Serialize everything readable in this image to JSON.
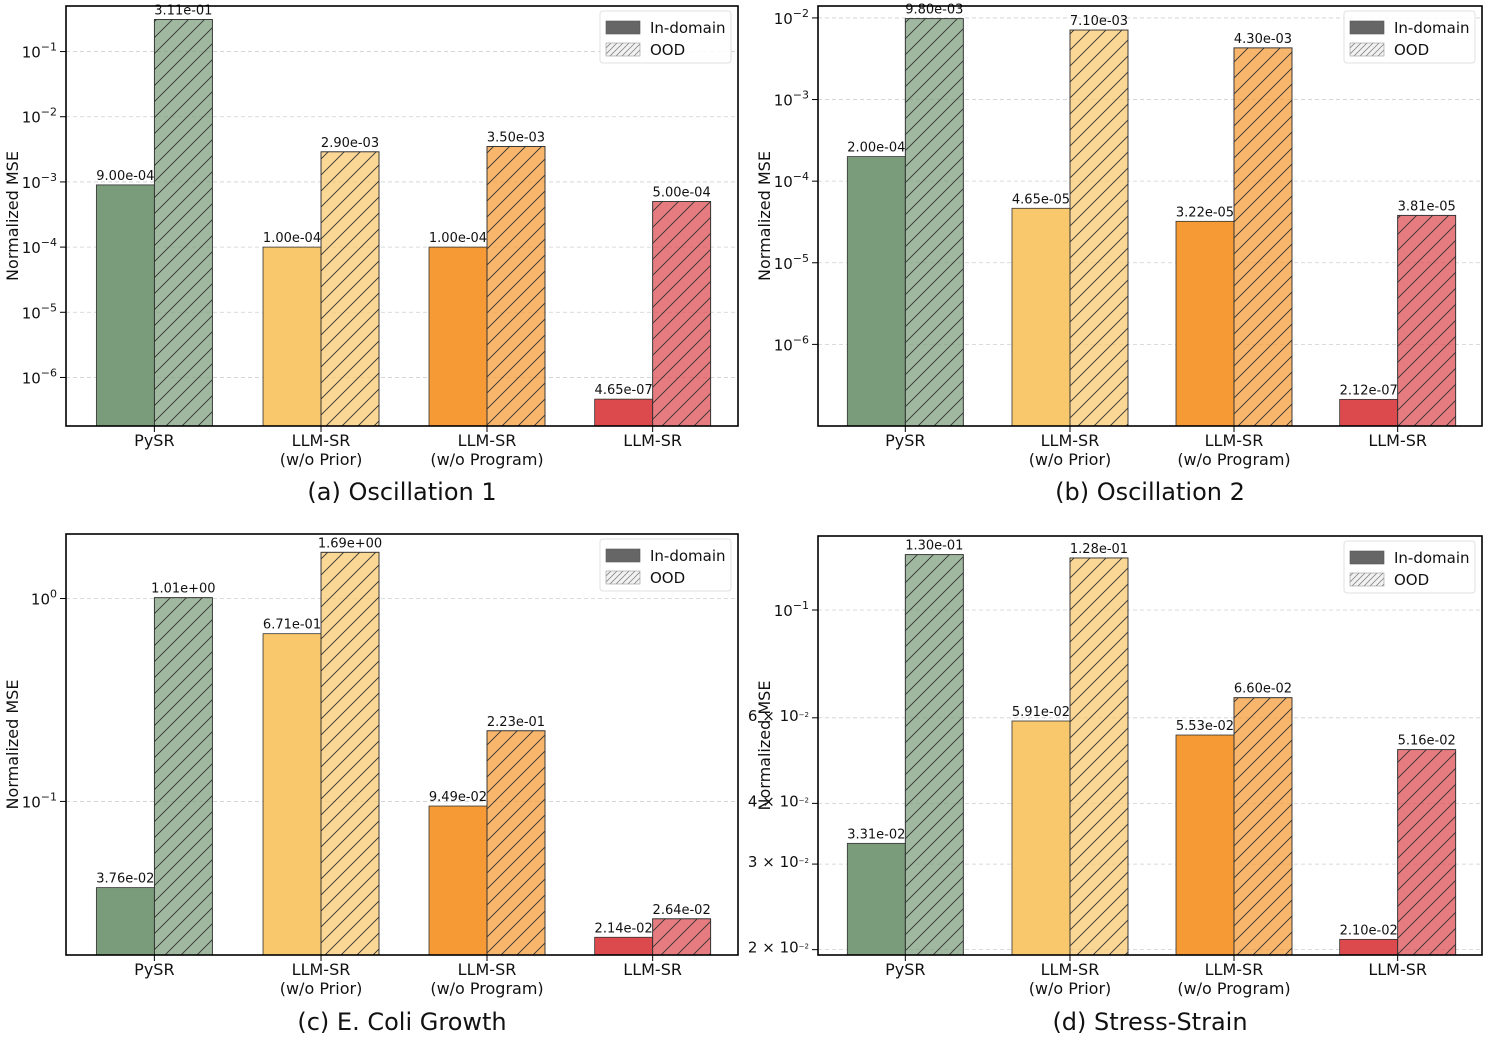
{
  "colors": {
    "pysr": "#7a9c7a",
    "llmsr_wo_prior": "#f9c86c",
    "llmsr_wo_program": "#f59a35",
    "llmsr": "#dc4a4d"
  },
  "legend": {
    "in_domain": "In-domain",
    "ood": "OOD"
  },
  "chart_data": [
    {
      "type": "bar",
      "scale": "log",
      "title": "(a) Oscillation 1",
      "ylabel": "Normalized MSE",
      "categories": [
        [
          "PySR"
        ],
        [
          "LLM-SR",
          "(w/o Prior)"
        ],
        [
          "LLM-SR",
          "(w/o Program)"
        ],
        [
          "LLM-SR"
        ]
      ],
      "series": [
        {
          "name": "In-domain",
          "values": [
            0.0009,
            0.0001,
            0.0001,
            4.65e-07
          ],
          "labels": [
            "9.00e-04",
            "1.00e-04",
            "1.00e-04",
            "4.65e-07"
          ]
        },
        {
          "name": "OOD",
          "values": [
            0.311,
            0.0029,
            0.0035,
            0.0005
          ],
          "labels": [
            "3.11e-01",
            "2.90e-03",
            "3.50e-03",
            "5.00e-04"
          ]
        }
      ],
      "ylim": [
        1.8e-07,
        0.5
      ],
      "yticks": [
        {
          "value": 1e-06,
          "base": "10",
          "exp": "−6"
        },
        {
          "value": 1e-05,
          "base": "10",
          "exp": "−5"
        },
        {
          "value": 0.0001,
          "base": "10",
          "exp": "−4"
        },
        {
          "value": 0.001,
          "base": "10",
          "exp": "−3"
        },
        {
          "value": 0.01,
          "base": "10",
          "exp": "−2"
        },
        {
          "value": 0.1,
          "base": "10",
          "exp": "−1"
        }
      ],
      "legend_position": "top-right",
      "grid": true
    },
    {
      "type": "bar",
      "scale": "log",
      "title": "(b) Oscillation 2",
      "ylabel": "Normalized MSE",
      "categories": [
        [
          "PySR"
        ],
        [
          "LLM-SR",
          "(w/o Prior)"
        ],
        [
          "LLM-SR",
          "(w/o Program)"
        ],
        [
          "LLM-SR"
        ]
      ],
      "series": [
        {
          "name": "In-domain",
          "values": [
            0.0002,
            4.65e-05,
            3.22e-05,
            2.12e-07
          ],
          "labels": [
            "2.00e-04",
            "4.65e-05",
            "3.22e-05",
            "2.12e-07"
          ]
        },
        {
          "name": "OOD",
          "values": [
            0.0098,
            0.0071,
            0.0043,
            3.81e-05
          ],
          "labels": [
            "9.80e-03",
            "7.10e-03",
            "4.30e-03",
            "3.81e-05"
          ]
        }
      ],
      "ylim": [
        1e-07,
        0.014
      ],
      "yticks": [
        {
          "value": 1e-06,
          "base": "10",
          "exp": "−6"
        },
        {
          "value": 1e-05,
          "base": "10",
          "exp": "−5"
        },
        {
          "value": 0.0001,
          "base": "10",
          "exp": "−4"
        },
        {
          "value": 0.001,
          "base": "10",
          "exp": "−3"
        },
        {
          "value": 0.01,
          "base": "10",
          "exp": "−2"
        }
      ],
      "legend_position": "top-right",
      "grid": true
    },
    {
      "type": "bar",
      "scale": "log",
      "title": "(c) E. Coli Growth",
      "ylabel": "Normalized MSE",
      "categories": [
        [
          "PySR"
        ],
        [
          "LLM-SR",
          "(w/o Prior)"
        ],
        [
          "LLM-SR",
          "(w/o Program)"
        ],
        [
          "LLM-SR"
        ]
      ],
      "series": [
        {
          "name": "In-domain",
          "values": [
            0.0376,
            0.671,
            0.0949,
            0.0214
          ],
          "labels": [
            "3.76e-02",
            "6.71e-01",
            "9.49e-02",
            "2.14e-02"
          ]
        },
        {
          "name": "OOD",
          "values": [
            1.01,
            1.69,
            0.223,
            0.0264
          ],
          "labels": [
            "1.01e+00",
            "1.69e+00",
            "2.23e-01",
            "2.64e-02"
          ]
        }
      ],
      "ylim": [
        0.0175,
        2.08
      ],
      "yticks": [
        {
          "value": 0.1,
          "base": "10",
          "exp": "−1"
        },
        {
          "value": 1,
          "base": "10",
          "exp": "0"
        }
      ],
      "legend_position": "top-right",
      "grid": true
    },
    {
      "type": "bar",
      "scale": "log",
      "title": "(d) Stress-Strain",
      "ylabel": "Normalized MSE",
      "categories": [
        [
          "PySR"
        ],
        [
          "LLM-SR",
          "(w/o Prior)"
        ],
        [
          "LLM-SR",
          "(w/o Program)"
        ],
        [
          "LLM-SR"
        ]
      ],
      "series": [
        {
          "name": "In-domain",
          "values": [
            0.0331,
            0.0591,
            0.0553,
            0.021
          ],
          "labels": [
            "3.31e-02",
            "5.91e-02",
            "5.53e-02",
            "2.10e-02"
          ]
        },
        {
          "name": "OOD",
          "values": [
            0.13,
            0.128,
            0.066,
            0.0516
          ],
          "labels": [
            "1.30e-01",
            "1.28e-01",
            "6.60e-02",
            "5.16e-02"
          ]
        }
      ],
      "ylim": [
        0.0195,
        0.142
      ],
      "yticks": [
        {
          "value": 0.02,
          "base": "2 × 10",
          "exp": "−2",
          "small": true
        },
        {
          "value": 0.03,
          "base": "3 × 10",
          "exp": "−2",
          "small": true
        },
        {
          "value": 0.04,
          "base": "4 × 10",
          "exp": "−2",
          "small": true
        },
        {
          "value": 0.06,
          "base": "6 × 10",
          "exp": "−2",
          "small": true
        },
        {
          "value": 0.1,
          "base": "10",
          "exp": "−1"
        }
      ],
      "legend_position": "top-right",
      "grid": true
    }
  ]
}
